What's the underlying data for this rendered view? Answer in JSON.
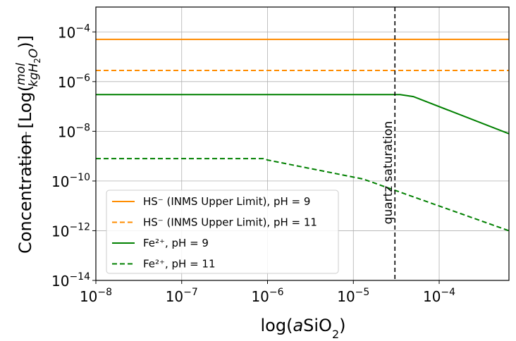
{
  "chart_data": {
    "type": "line",
    "title": "",
    "xlabel": "log(aSiO₂)",
    "ylabel": "Concentration [Log(mol / kgH₂O)]",
    "x_scale": "log",
    "y_scale": "log",
    "xlim": [
      1e-08,
      0.00065
    ],
    "ylim": [
      1e-14,
      0.001
    ],
    "x_ticks": [
      {
        "value": 1e-08,
        "base": "10",
        "exp": "−8"
      },
      {
        "value": 1e-07,
        "base": "10",
        "exp": "−7"
      },
      {
        "value": 1e-06,
        "base": "10",
        "exp": "−6"
      },
      {
        "value": 1e-05,
        "base": "10",
        "exp": "−5"
      },
      {
        "value": 0.0001,
        "base": "10",
        "exp": "−4"
      }
    ],
    "y_ticks": [
      {
        "value": 1e-14,
        "base": "10",
        "exp": "−14"
      },
      {
        "value": 1e-12,
        "base": "10",
        "exp": "−12"
      },
      {
        "value": 1e-10,
        "base": "10",
        "exp": "−10"
      },
      {
        "value": 1e-08,
        "base": "10",
        "exp": "−8"
      },
      {
        "value": 1e-06,
        "base": "10",
        "exp": "−6"
      },
      {
        "value": 0.0001,
        "base": "10",
        "exp": "−4"
      }
    ],
    "grid": true,
    "legend_position": "lower-left",
    "series": [
      {
        "name": "HS⁻ (INMS Upper Limit), pH = 9",
        "color": "#ff8c00",
        "dash": "solid",
        "x": [
          1e-08,
          0.00065
        ],
        "y": [
          5e-05,
          5e-05
        ]
      },
      {
        "name": "HS⁻ (INMS Upper Limit), pH = 11",
        "color": "#ff8c00",
        "dash": "dashed",
        "x": [
          1e-08,
          0.00065
        ],
        "y": [
          2.8e-06,
          2.8e-06
        ]
      },
      {
        "name": "Fe²⁺, pH = 9",
        "color": "#008000",
        "dash": "solid",
        "x": [
          1e-08,
          3.5e-05,
          5e-05,
          0.00065
        ],
        "y": [
          3e-07,
          3e-07,
          2.5e-07,
          8e-09
        ]
      },
      {
        "name": "Fe²⁺, pH = 11",
        "color": "#008000",
        "dash": "dashed",
        "x": [
          1e-08,
          9e-07,
          1e-06,
          1.3e-05,
          0.00065
        ],
        "y": [
          8e-10,
          8e-10,
          7e-10,
          1.2e-10,
          1e-12
        ]
      }
    ],
    "annotations": [
      {
        "text": "quartz saturation",
        "x": 3.05e-05,
        "style": "black dashed vertical line"
      }
    ]
  }
}
